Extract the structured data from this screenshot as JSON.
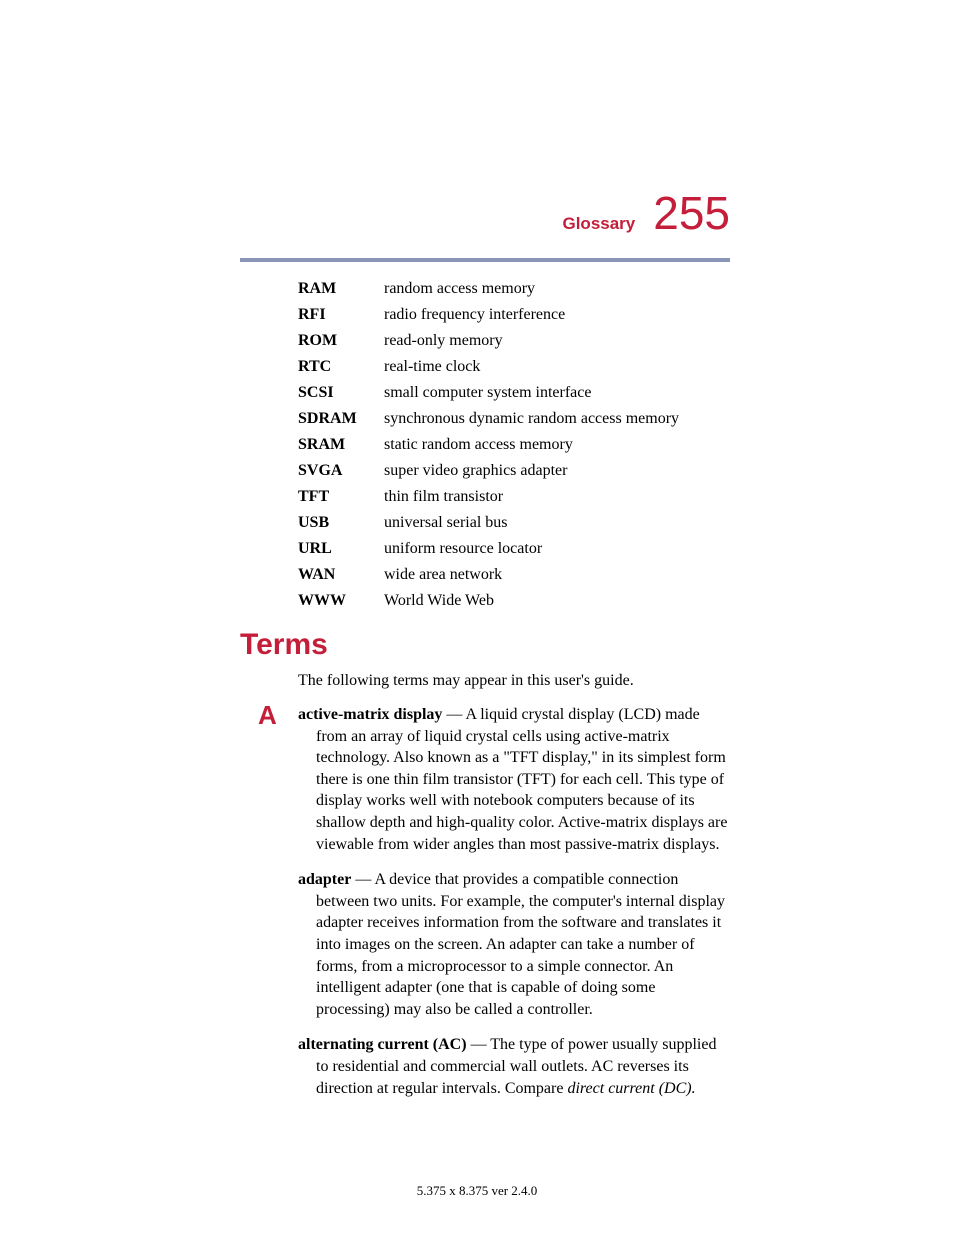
{
  "header": {
    "title": "Glossary",
    "page_number": "255"
  },
  "colors": {
    "accent": "#c41e3a",
    "rule": "#8a96b8",
    "text": "#000000",
    "background": "#ffffff"
  },
  "abbreviations": [
    {
      "term": "RAM",
      "def": "random access memory"
    },
    {
      "term": "RFI",
      "def": "radio frequency interference"
    },
    {
      "term": "ROM",
      "def": "read-only memory"
    },
    {
      "term": "RTC",
      "def": "real-time clock"
    },
    {
      "term": "SCSI",
      "def": "small computer system interface"
    },
    {
      "term": "SDRAM",
      "def": "synchronous dynamic random access memory"
    },
    {
      "term": "SRAM",
      "def": "static random access memory"
    },
    {
      "term": "SVGA",
      "def": "super video graphics adapter"
    },
    {
      "term": "TFT",
      "def": "thin film transistor"
    },
    {
      "term": "USB",
      "def": "universal serial bus"
    },
    {
      "term": "URL",
      "def": "uniform resource locator"
    },
    {
      "term": "WAN",
      "def": "wide area network"
    },
    {
      "term": "WWW",
      "def": "World Wide Web"
    }
  ],
  "section": {
    "heading": "Terms",
    "intro": "The following terms may appear in this user's guide.",
    "letter": "A"
  },
  "terms": [
    {
      "name": "active-matrix display",
      "body": " — A liquid crystal display (LCD) made from an array of liquid crystal cells using active-matrix technology. Also known as a \"TFT display,\" in its simplest form there is one thin film transistor (TFT) for each cell. This type of display works well with notebook computers because of its shallow depth and high-quality color. Active-matrix displays are viewable from wider angles than most passive-matrix displays.",
      "italic_tail": ""
    },
    {
      "name": "adapter",
      "body": " — A device that provides a compatible connection between two units. For example, the computer's internal display adapter receives information from the software and translates it into images on the screen. An adapter can take a number of forms, from a microprocessor to a simple connector. An intelligent adapter (one that is capable of doing some processing) may also be called a controller.",
      "italic_tail": ""
    },
    {
      "name": "alternating current (AC)",
      "body": " — The type of power usually supplied to residential and commercial wall outlets. AC reverses its direction at regular intervals. Compare ",
      "italic_tail": "direct current (DC)."
    }
  ],
  "footer": "5.375 x 8.375 ver 2.4.0"
}
